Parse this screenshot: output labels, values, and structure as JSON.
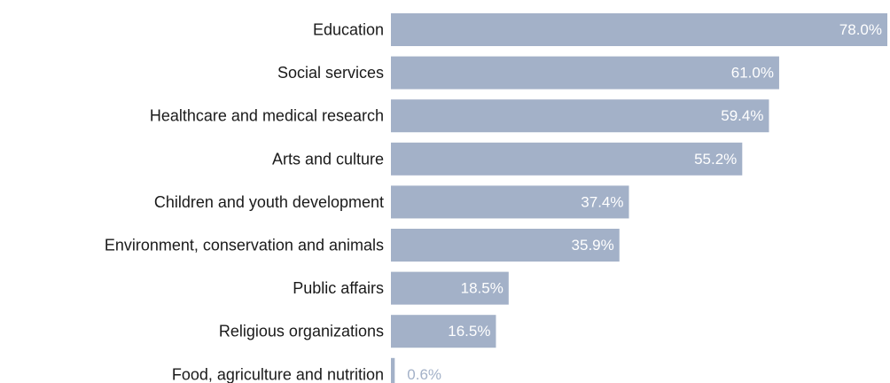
{
  "chart_data": {
    "type": "bar",
    "orientation": "horizontal",
    "categories": [
      "Education",
      "Social services",
      "Healthcare and medical research",
      "Arts and culture",
      "Children and youth development",
      "Environment, conservation and animals",
      "Public affairs",
      "Religious organizations",
      "Food, agriculture and nutrition"
    ],
    "values": [
      78.0,
      61.0,
      59.4,
      55.2,
      37.4,
      35.9,
      18.5,
      16.5,
      0.6
    ],
    "value_labels": [
      "78.0%",
      "61.0%",
      "59.4%",
      "55.2%",
      "37.4%",
      "35.9%",
      "18.5%",
      "16.5%",
      "0.6%"
    ],
    "unit": "%",
    "xlim": [
      0,
      78
    ],
    "grid": false,
    "legend": "none",
    "title": "",
    "xlabel": "",
    "ylabel": "",
    "colors": {
      "bar": "#a3b1c8",
      "label_inside": "#ffffff",
      "label_outside": "#a3b1c8",
      "category_text": "#1a1a1a"
    }
  }
}
